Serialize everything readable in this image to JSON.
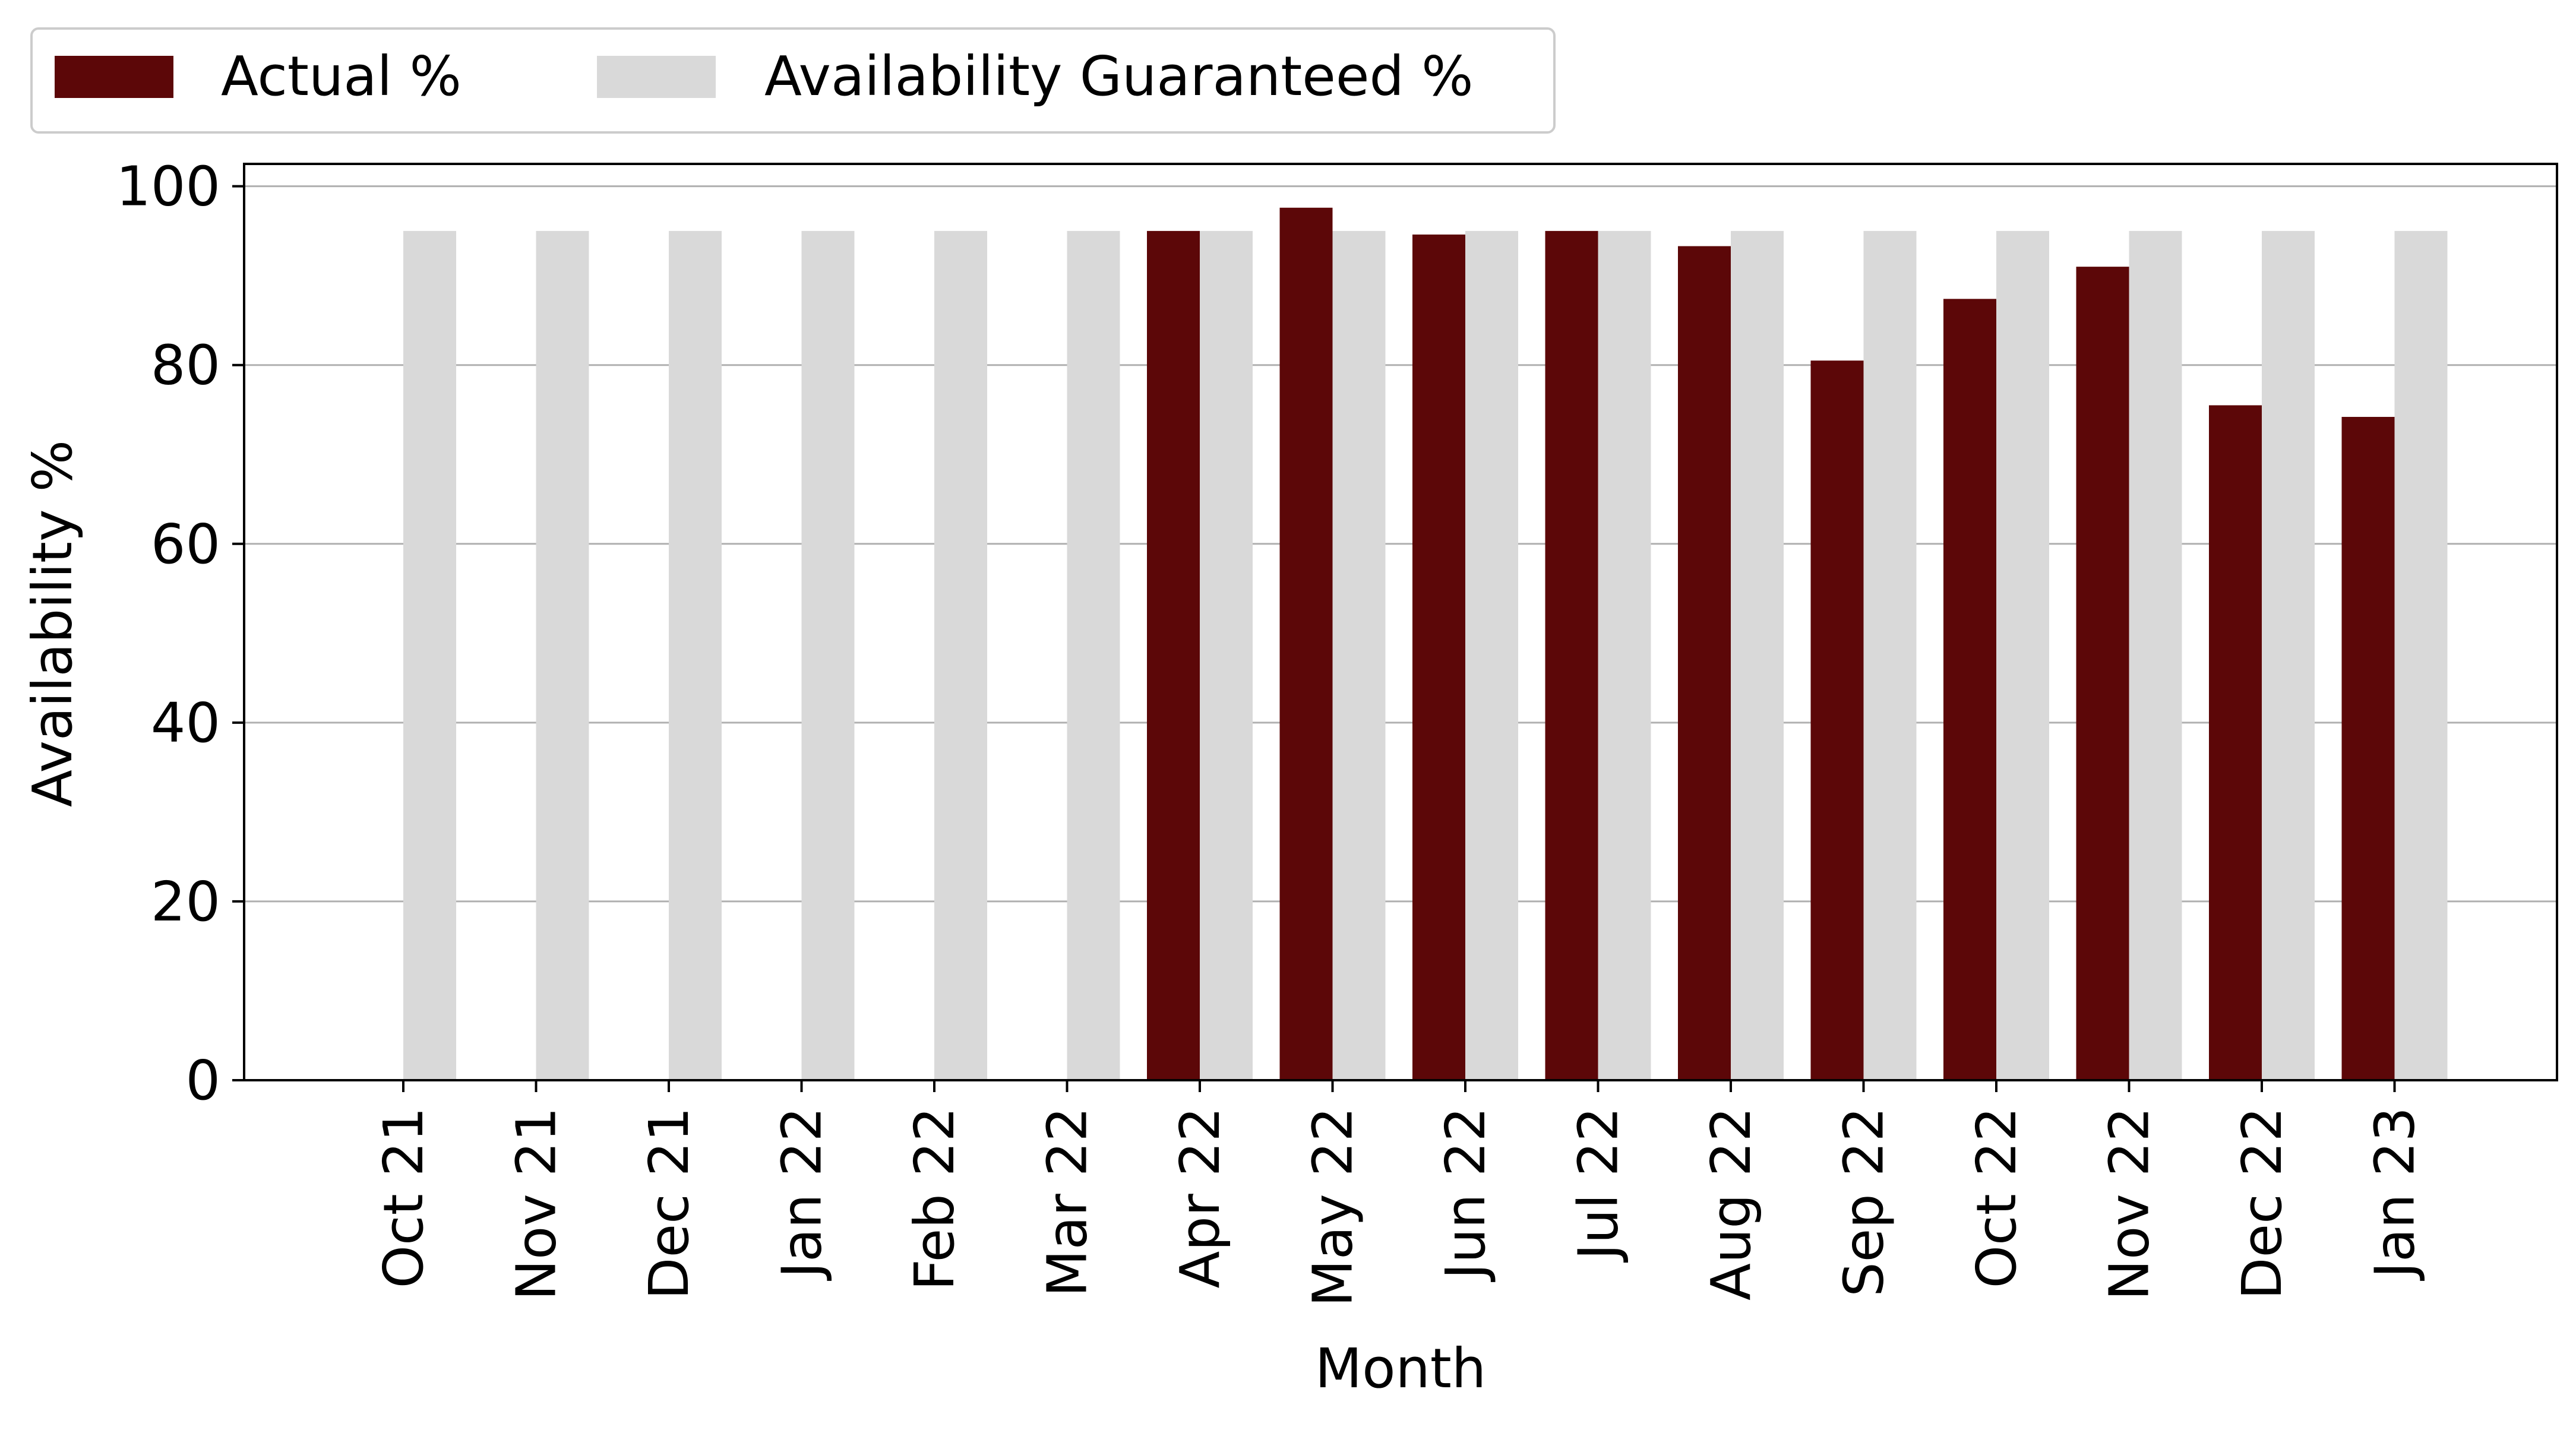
{
  "chart_data": {
    "type": "bar",
    "title": "",
    "xlabel": "Month",
    "ylabel": "Availability %",
    "ylim": [
      0,
      102.5
    ],
    "yticks": [
      0,
      20,
      40,
      60,
      80,
      100
    ],
    "grid": "y",
    "legend_position": "top-left, above plot",
    "categories": [
      "Oct 21",
      "Nov 21",
      "Dec 21",
      "Jan 22",
      "Feb 22",
      "Mar 22",
      "Apr 22",
      "May 22",
      "Jun 22",
      "Jul 22",
      "Aug 22",
      "Sep 22",
      "Oct 22",
      "Nov 22",
      "Dec 22",
      "Jan 23"
    ],
    "series": [
      {
        "name": "Actual %",
        "color": "#5c0708",
        "values": [
          null,
          null,
          null,
          null,
          null,
          null,
          95.0,
          97.6,
          94.6,
          95.0,
          93.3,
          80.5,
          87.4,
          91.0,
          75.5,
          74.2
        ]
      },
      {
        "name": "Availability Guaranteed %",
        "color": "#d9d9d9",
        "values": [
          95,
          95,
          95,
          95,
          95,
          95,
          95,
          95,
          95,
          95,
          95,
          95,
          95,
          95,
          95,
          95
        ]
      }
    ]
  }
}
